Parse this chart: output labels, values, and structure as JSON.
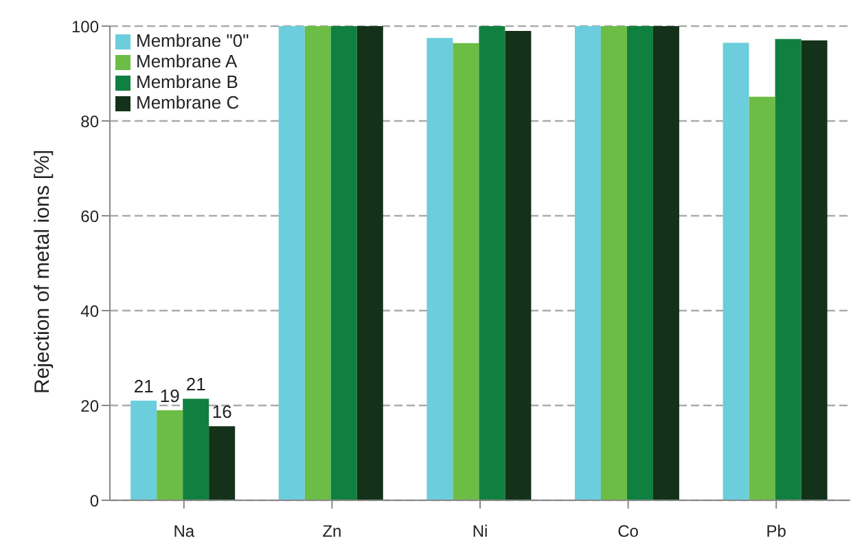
{
  "chart_data": {
    "type": "bar",
    "ylabel": "Rejection of metal ions [%]",
    "categories": [
      "Na",
      "Zn",
      "Ni",
      "Co",
      "Pb"
    ],
    "series": [
      {
        "name": "Membrane \"0\"",
        "color": "#6ccddc",
        "values": [
          21,
          100,
          97.5,
          100,
          96.5
        ],
        "value_labels": [
          "21",
          null,
          null,
          null,
          null
        ]
      },
      {
        "name": "Membrane A",
        "color": "#6cbd45",
        "values": [
          19,
          100,
          96.4,
          100,
          85.1
        ],
        "value_labels": [
          "19",
          null,
          null,
          null,
          null
        ]
      },
      {
        "name": "Membrane B",
        "color": "#108040",
        "values": [
          21.4,
          100,
          100,
          100,
          97.3
        ],
        "value_labels": [
          "21",
          null,
          null,
          null,
          null
        ]
      },
      {
        "name": "Membrane C",
        "color": "#14321a",
        "values": [
          15.6,
          100,
          99,
          100,
          97
        ],
        "value_labels": [
          "16",
          null,
          null,
          null,
          null
        ]
      }
    ],
    "ylim": [
      0,
      100
    ],
    "yticks": [
      0,
      20,
      40,
      60,
      80,
      100
    ],
    "grid": "y",
    "legend": "top left"
  }
}
